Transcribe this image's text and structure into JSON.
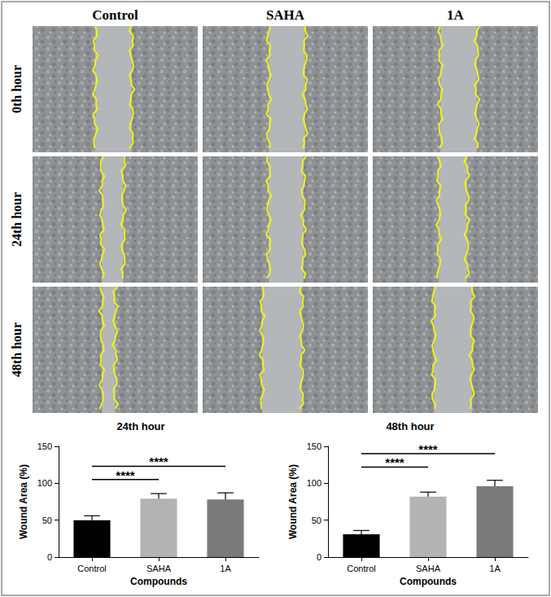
{
  "panels": {
    "columns": [
      "Control",
      "SAHA",
      "1A"
    ],
    "rows": [
      "0th hour",
      "24th hour",
      "48th hour"
    ]
  },
  "chart_data": [
    {
      "type": "bar",
      "title": "24th hour",
      "x_label": "Compounds",
      "y_label": "Wound Area (%)",
      "categories": [
        "Control",
        "SAHA",
        "1A"
      ],
      "values": [
        50,
        79,
        78
      ],
      "errors": [
        6,
        7,
        9
      ],
      "colors": [
        "#000000",
        "#b3b3b3",
        "#7a7a7a"
      ],
      "ylim": [
        0,
        150
      ],
      "yticks": [
        0,
        50,
        100,
        150
      ],
      "grid": false,
      "annotations": [
        {
          "from": "Control",
          "to": "SAHA",
          "text": "****"
        },
        {
          "from": "Control",
          "to": "1A",
          "text": "****"
        }
      ]
    },
    {
      "type": "bar",
      "title": "48th hour",
      "x_label": "Compounds",
      "y_label": "Wound Area (%)",
      "categories": [
        "Control",
        "SAHA",
        "1A"
      ],
      "values": [
        31,
        82,
        96
      ],
      "errors": [
        5,
        6,
        8
      ],
      "colors": [
        "#000000",
        "#b3b3b3",
        "#7a7a7a"
      ],
      "ylim": [
        0,
        150
      ],
      "yticks": [
        0,
        50,
        100,
        150
      ],
      "grid": false,
      "annotations": [
        {
          "from": "Control",
          "to": "SAHA",
          "text": "****"
        },
        {
          "from": "Control",
          "to": "1A",
          "text": "****"
        }
      ]
    }
  ]
}
